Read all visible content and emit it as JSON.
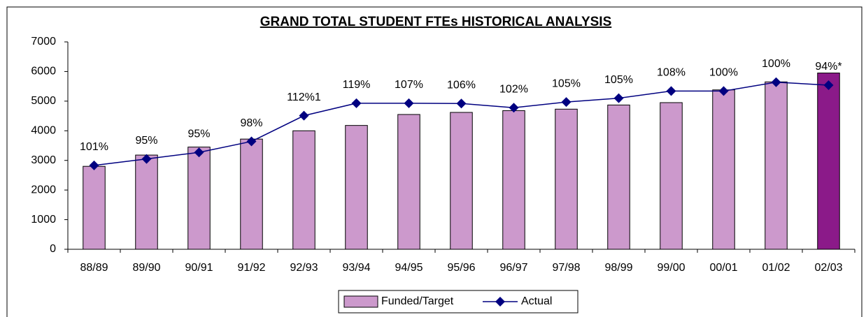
{
  "chart_data": {
    "type": "bar_line",
    "title": "GRAND TOTAL STUDENT FTEs HISTORICAL ANALYSIS",
    "categories": [
      "88/89",
      "89/90",
      "90/91",
      "91/92",
      "92/93",
      "93/94",
      "94/95",
      "95/96",
      "96/97",
      "97/98",
      "98/99",
      "99/00",
      "00/01",
      "01/02",
      "02/03"
    ],
    "series": [
      {
        "name": "Funded/Target",
        "type": "bar",
        "color": "#cc99cc",
        "colors": [
          "#cc99cc",
          "#cc99cc",
          "#cc99cc",
          "#cc99cc",
          "#cc99cc",
          "#cc99cc",
          "#cc99cc",
          "#cc99cc",
          "#cc99cc",
          "#cc99cc",
          "#cc99cc",
          "#cc99cc",
          "#cc99cc",
          "#cc99cc",
          "#8b1a89"
        ],
        "values": [
          2800,
          3180,
          3450,
          3720,
          4000,
          4180,
          4550,
          4620,
          4680,
          4730,
          4870,
          4950,
          5380,
          5650,
          5950
        ]
      },
      {
        "name": "Actual",
        "type": "line",
        "color": "#000080",
        "values": [
          2830,
          3050,
          3270,
          3640,
          4510,
          4930,
          4930,
          4920,
          4780,
          4970,
          5100,
          5340,
          5340,
          5640,
          5540
        ]
      }
    ],
    "annotations": [
      "101%",
      "95%",
      "95%",
      "98%",
      "112%1",
      "119%",
      "107%",
      "106%",
      "102%",
      "105%",
      "105%",
      "108%",
      "100%",
      "100%",
      "94%*"
    ],
    "ylim": [
      0,
      7000
    ],
    "yticks": [
      0,
      1000,
      2000,
      3000,
      4000,
      5000,
      6000,
      7000
    ],
    "legend": "bottom"
  }
}
